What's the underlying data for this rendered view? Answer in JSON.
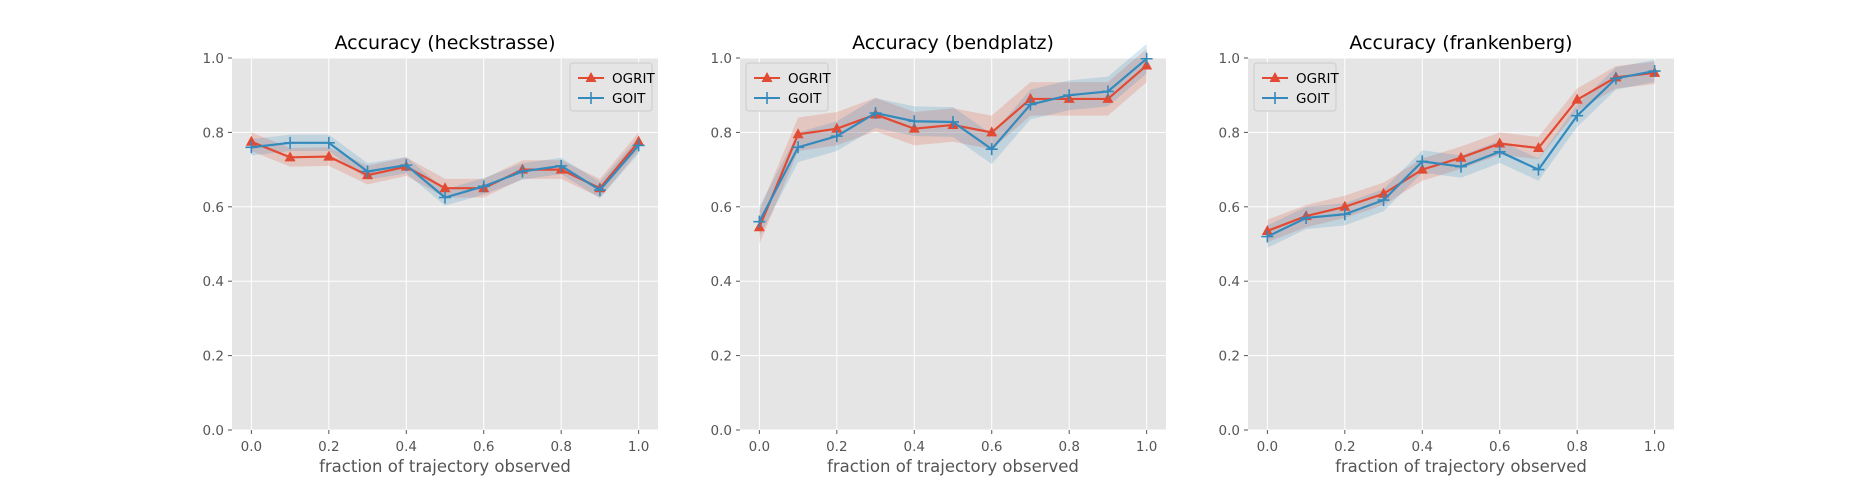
{
  "chart_data": [
    {
      "type": "line",
      "title": "Accuracy (heckstrasse)",
      "xlabel": "fraction of trajectory observed",
      "ylabel": "",
      "x": [
        0.0,
        0.1,
        0.2,
        0.3,
        0.4,
        0.5,
        0.6,
        0.7,
        0.8,
        0.9,
        1.0
      ],
      "xlim": [
        -0.05,
        1.05
      ],
      "ylim": [
        0.0,
        1.0
      ],
      "xticks": [
        "0.0",
        "0.2",
        "0.4",
        "0.6",
        "0.8",
        "1.0"
      ],
      "yticks": [
        "0.0",
        "0.2",
        "0.4",
        "0.6",
        "0.8",
        "1.0"
      ],
      "grid": true,
      "legend": "top-right",
      "series": [
        {
          "name": "OGRIT",
          "color": "#E24A33",
          "marker": "triangle",
          "values": [
            0.775,
            0.733,
            0.735,
            0.685,
            0.708,
            0.65,
            0.65,
            0.7,
            0.7,
            0.65,
            0.775
          ],
          "band": 0.025
        },
        {
          "name": "GOIT",
          "color": "#348ABD",
          "marker": "plus",
          "values": [
            0.76,
            0.772,
            0.772,
            0.695,
            0.712,
            0.625,
            0.655,
            0.695,
            0.71,
            0.645,
            0.765
          ],
          "band": 0.022
        }
      ]
    },
    {
      "type": "line",
      "title": "Accuracy (bendplatz)",
      "xlabel": "fraction of trajectory observed",
      "ylabel": "",
      "x": [
        0.0,
        0.1,
        0.2,
        0.3,
        0.4,
        0.5,
        0.6,
        0.7,
        0.8,
        0.9,
        1.0
      ],
      "xlim": [
        -0.05,
        1.05
      ],
      "ylim": [
        0.0,
        1.0
      ],
      "xticks": [
        "0.0",
        "0.2",
        "0.4",
        "0.6",
        "0.8",
        "1.0"
      ],
      "yticks": [
        "0.0",
        "0.2",
        "0.4",
        "0.6",
        "0.8",
        "1.0"
      ],
      "grid": true,
      "legend": "top-left",
      "series": [
        {
          "name": "OGRIT",
          "color": "#E24A33",
          "marker": "triangle",
          "values": [
            0.545,
            0.795,
            0.81,
            0.848,
            0.81,
            0.82,
            0.8,
            0.89,
            0.89,
            0.89,
            0.98
          ],
          "band": 0.045
        },
        {
          "name": "GOIT",
          "color": "#348ABD",
          "marker": "plus",
          "values": [
            0.56,
            0.76,
            0.79,
            0.852,
            0.83,
            0.828,
            0.755,
            0.875,
            0.9,
            0.91,
            0.998
          ],
          "band": 0.04
        }
      ]
    },
    {
      "type": "line",
      "title": "Accuracy (frankenberg)",
      "xlabel": "fraction of trajectory observed",
      "ylabel": "",
      "x": [
        0.0,
        0.1,
        0.2,
        0.3,
        0.4,
        0.5,
        0.6,
        0.7,
        0.8,
        0.9,
        1.0
      ],
      "xlim": [
        -0.05,
        1.05
      ],
      "ylim": [
        0.0,
        1.0
      ],
      "xticks": [
        "0.0",
        "0.2",
        "0.4",
        "0.6",
        "0.8",
        "1.0"
      ],
      "yticks": [
        "0.0",
        "0.2",
        "0.4",
        "0.6",
        "0.8",
        "1.0"
      ],
      "grid": true,
      "legend": "top-left",
      "series": [
        {
          "name": "OGRIT",
          "color": "#E24A33",
          "marker": "triangle",
          "values": [
            0.535,
            0.575,
            0.6,
            0.635,
            0.7,
            0.732,
            0.77,
            0.758,
            0.888,
            0.948,
            0.96
          ],
          "band": 0.03
        },
        {
          "name": "GOIT",
          "color": "#348ABD",
          "marker": "plus",
          "values": [
            0.52,
            0.57,
            0.58,
            0.618,
            0.722,
            0.708,
            0.748,
            0.7,
            0.845,
            0.945,
            0.965
          ],
          "band": 0.03
        }
      ]
    }
  ],
  "style": {
    "axes_facecolor": "#E5E5E5",
    "grid_color": "#FFFFFF",
    "tick_color": "#555555",
    "legend_facecolor": "#E5E5E5",
    "legend_edgecolor": "#CCCCCC"
  }
}
